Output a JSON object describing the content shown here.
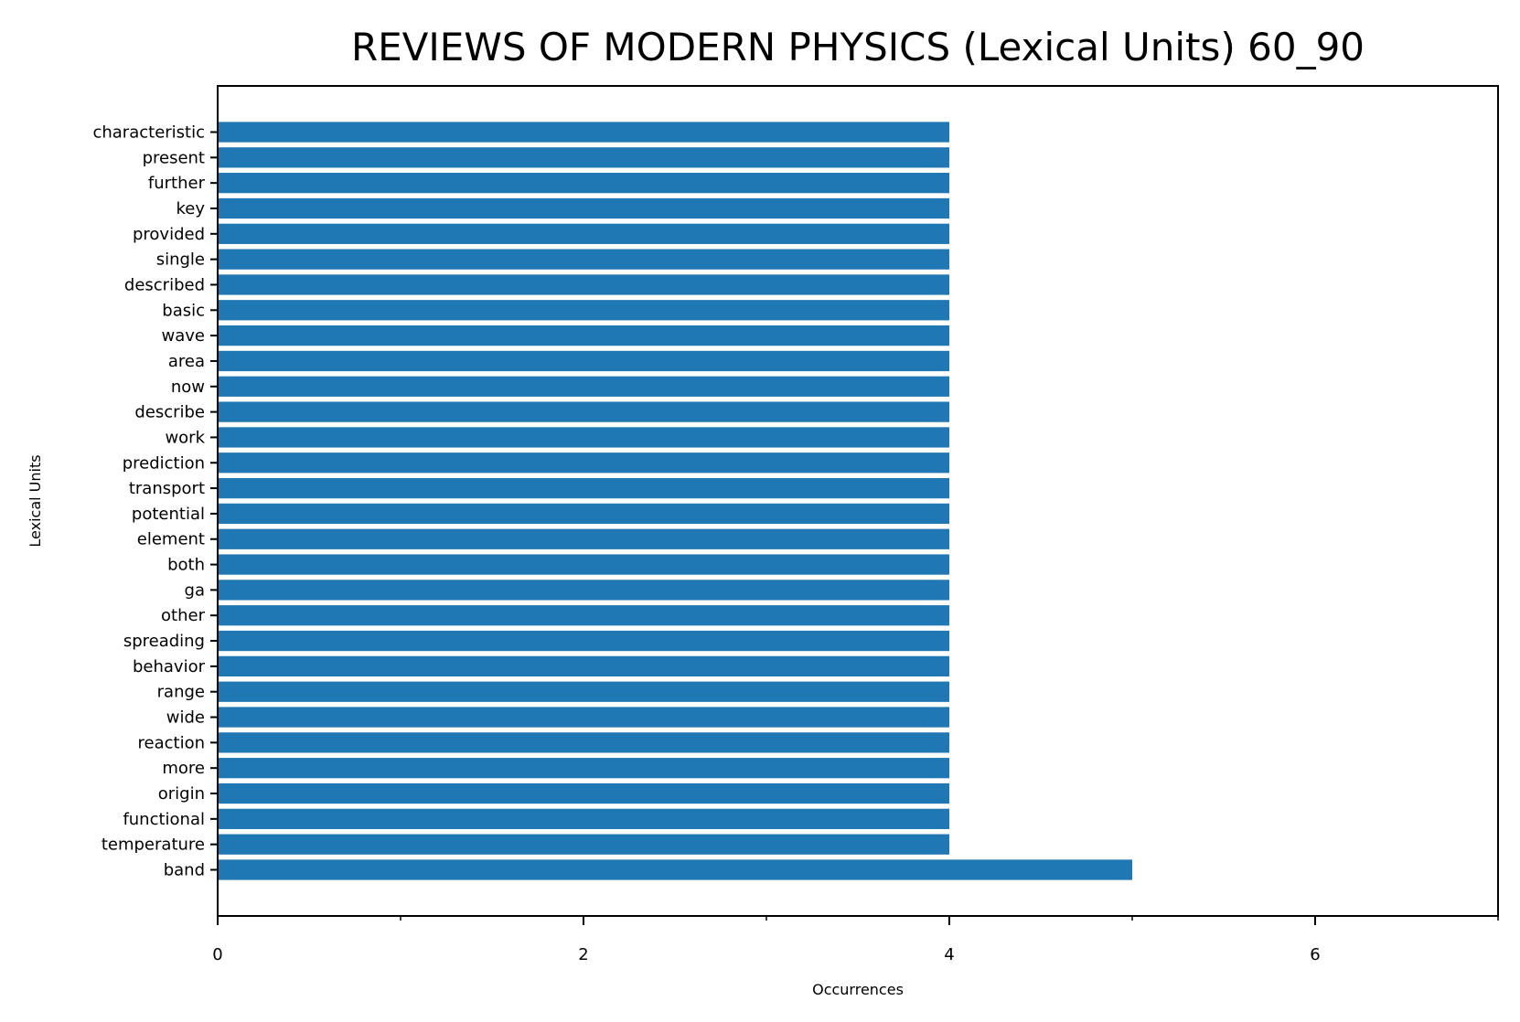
{
  "chart_data": {
    "type": "bar",
    "orientation": "horizontal",
    "title": "REVIEWS OF MODERN PHYSICS (Lexical Units) 60_90",
    "xlabel": "Occurrences",
    "ylabel": "Lexical Units",
    "xlim": [
      0,
      7
    ],
    "x_ticks": [
      0,
      2,
      4,
      6
    ],
    "x_minor_ticks": [
      1,
      3,
      5,
      7
    ],
    "grid": false,
    "bar_color": "#1f77b4",
    "categories": [
      "band",
      "temperature",
      "functional",
      "origin",
      "more",
      "reaction",
      "wide",
      "range",
      "behavior",
      "spreading",
      "other",
      "ga",
      "both",
      "element",
      "potential",
      "transport",
      "prediction",
      "work",
      "describe",
      "now",
      "area",
      "wave",
      "basic",
      "described",
      "single",
      "provided",
      "key",
      "further",
      "present",
      "characteristic"
    ],
    "values": [
      5,
      4,
      4,
      4,
      4,
      4,
      4,
      4,
      4,
      4,
      4,
      4,
      4,
      4,
      4,
      4,
      4,
      4,
      4,
      4,
      4,
      4,
      4,
      4,
      4,
      4,
      4,
      4,
      4,
      4
    ]
  }
}
